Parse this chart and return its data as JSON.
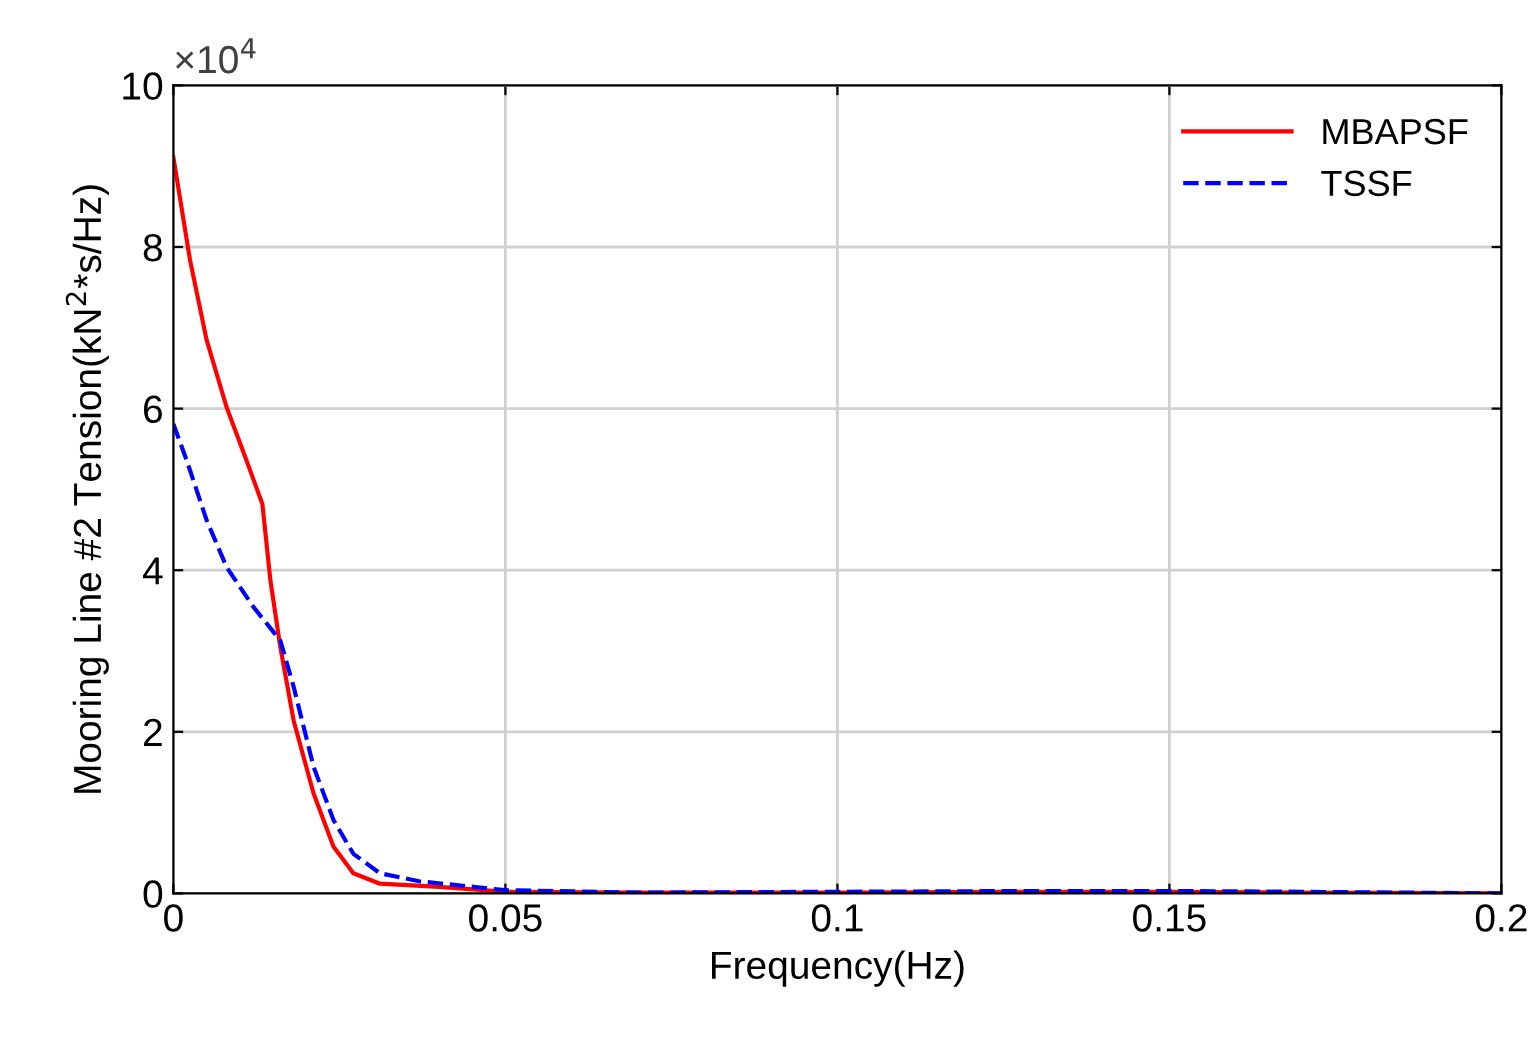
{
  "chart_data": {
    "type": "line",
    "xlabel": "Frequency(Hz)",
    "ylabel": "Mooring Line #2 Tension(kN$^{2}$*s/Hz)",
    "annotations": [
      "×10$^{4}$"
    ],
    "xlim": [
      0,
      0.2
    ],
    "xticks": [
      0,
      0.05,
      0.1,
      0.15,
      0.2
    ],
    "ylim": [
      0,
      10
    ],
    "yticks": [
      0,
      2,
      4,
      6,
      8,
      10
    ],
    "grid": true,
    "legend": "top right",
    "series": [
      {
        "name": "MBAPSF",
        "color": "#ff0000",
        "line_style": "solid",
        "x": [
          0,
          0.0025,
          0.005,
          0.008,
          0.011,
          0.0134,
          0.0146,
          0.0161,
          0.0181,
          0.0211,
          0.0241,
          0.0271,
          0.0311,
          0.04,
          0.05,
          0.07,
          0.1,
          0.13,
          0.15,
          0.17,
          0.2
        ],
        "values": [
          9.11,
          7.84,
          6.85,
          6.02,
          5.36,
          4.82,
          3.88,
          3.05,
          2.14,
          1.24,
          0.58,
          0.25,
          0.12,
          0.08,
          0.02,
          0.01,
          0.01,
          0.02,
          0.02,
          0.01,
          0
        ]
      },
      {
        "name": "TSSF",
        "color": "#0000ff",
        "line_style": "dashed",
        "x": [
          0,
          0.002,
          0.005,
          0.008,
          0.012,
          0.0161,
          0.0181,
          0.0211,
          0.0241,
          0.0271,
          0.0311,
          0.037,
          0.05,
          0.07,
          0.1,
          0.13,
          0.15,
          0.17,
          0.2
        ],
        "values": [
          5.81,
          5.36,
          4.62,
          4.04,
          3.55,
          3.13,
          2.56,
          1.57,
          0.91,
          0.49,
          0.25,
          0.15,
          0.04,
          0.01,
          0.02,
          0.03,
          0.03,
          0.02,
          0
        ]
      }
    ]
  }
}
